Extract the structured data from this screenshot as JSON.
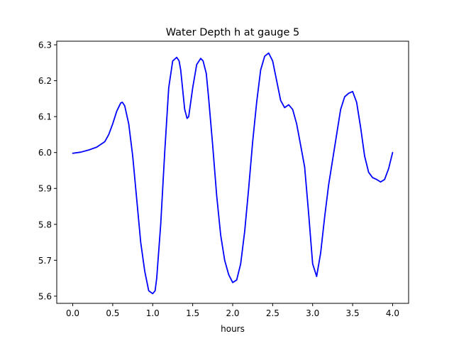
{
  "chart_data": {
    "type": "line",
    "title": "Water Depth h at gauge 5",
    "xlabel": "hours",
    "ylabel": "",
    "xlim": [
      -0.2,
      4.2
    ],
    "ylim": [
      5.58,
      6.31
    ],
    "xticks": [
      0.0,
      0.5,
      1.0,
      1.5,
      2.0,
      2.5,
      3.0,
      3.5,
      4.0
    ],
    "xtick_labels": [
      "0.0",
      "0.5",
      "1.0",
      "1.5",
      "2.0",
      "2.5",
      "3.0",
      "3.5",
      "4.0"
    ],
    "yticks": [
      5.6,
      5.7,
      5.8,
      5.9,
      6.0,
      6.1,
      6.2,
      6.3
    ],
    "ytick_labels": [
      "5.6",
      "5.7",
      "5.8",
      "5.9",
      "6.0",
      "6.1",
      "6.2",
      "6.3"
    ],
    "grid": false,
    "line_color": "#0000ff",
    "series": [
      {
        "name": "",
        "x": [
          0.0,
          0.1,
          0.2,
          0.3,
          0.4,
          0.45,
          0.5,
          0.55,
          0.6,
          0.62,
          0.65,
          0.7,
          0.75,
          0.8,
          0.85,
          0.9,
          0.95,
          1.0,
          1.03,
          1.05,
          1.1,
          1.15,
          1.2,
          1.25,
          1.3,
          1.33,
          1.35,
          1.4,
          1.43,
          1.45,
          1.5,
          1.55,
          1.6,
          1.63,
          1.67,
          1.7,
          1.75,
          1.8,
          1.85,
          1.9,
          1.95,
          2.0,
          2.05,
          2.1,
          2.15,
          2.2,
          2.25,
          2.3,
          2.35,
          2.4,
          2.45,
          2.5,
          2.55,
          2.6,
          2.65,
          2.7,
          2.75,
          2.8,
          2.85,
          2.9,
          2.95,
          3.0,
          3.05,
          3.1,
          3.15,
          3.2,
          3.25,
          3.3,
          3.35,
          3.4,
          3.45,
          3.5,
          3.55,
          3.6,
          3.65,
          3.7,
          3.75,
          3.8,
          3.85,
          3.9,
          3.95,
          4.0
        ],
        "y": [
          5.998,
          6.001,
          6.007,
          6.015,
          6.03,
          6.05,
          6.08,
          6.115,
          6.138,
          6.14,
          6.13,
          6.08,
          5.99,
          5.87,
          5.75,
          5.67,
          5.615,
          5.607,
          5.615,
          5.65,
          5.8,
          6.0,
          6.18,
          6.255,
          6.265,
          6.255,
          6.23,
          6.12,
          6.095,
          6.1,
          6.18,
          6.245,
          6.262,
          6.255,
          6.22,
          6.15,
          6.02,
          5.88,
          5.77,
          5.7,
          5.66,
          5.638,
          5.645,
          5.69,
          5.78,
          5.9,
          6.03,
          6.14,
          6.23,
          6.268,
          6.277,
          6.255,
          6.2,
          6.145,
          6.125,
          6.133,
          6.12,
          6.08,
          6.02,
          5.96,
          5.83,
          5.69,
          5.655,
          5.72,
          5.82,
          5.91,
          5.98,
          6.05,
          6.12,
          6.155,
          6.165,
          6.17,
          6.14,
          6.07,
          5.99,
          5.945,
          5.93,
          5.925,
          5.918,
          5.925,
          5.955,
          6.0
        ]
      }
    ]
  }
}
